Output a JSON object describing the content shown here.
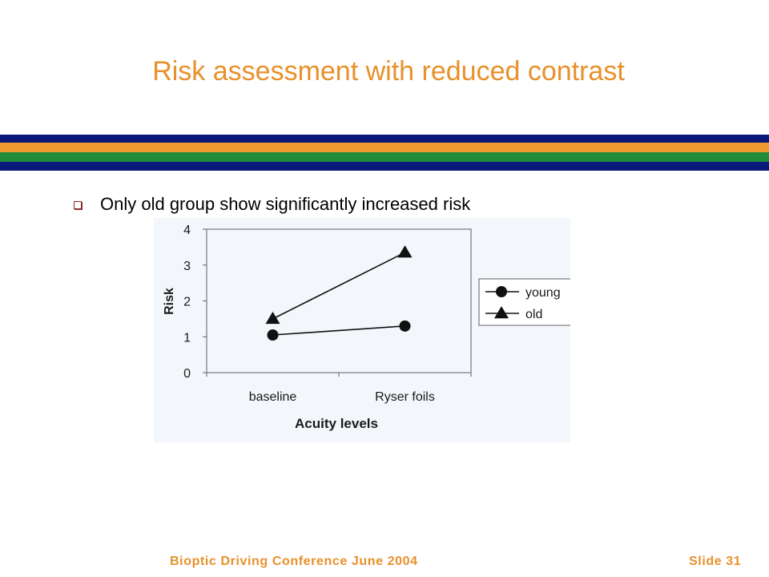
{
  "slide": {
    "title": "Risk assessment with reduced contrast",
    "bullet": "Only old group show significantly increased risk",
    "footer_left": "Bioptic Driving Conference June 2004",
    "footer_right": "Slide  31"
  },
  "colors": {
    "title": "#e8902a",
    "band_navy": "#0b1a7a",
    "band_orange": "#ef9a2e",
    "band_green": "#1f8a3a",
    "chart_background": "#f3f6fb"
  },
  "chart_data": {
    "type": "line",
    "categories": [
      "baseline",
      "Ryser foils"
    ],
    "series": [
      {
        "name": "young",
        "marker": "circle",
        "values": [
          1.05,
          1.3
        ]
      },
      {
        "name": "old",
        "marker": "triangle",
        "values": [
          1.5,
          3.35
        ]
      }
    ],
    "xlabel": "Acuity levels",
    "ylabel": "Risk",
    "ylim": [
      0,
      4
    ],
    "yticks": [
      "0",
      "1",
      "2",
      "3",
      "4"
    ],
    "legend_position": "right",
    "grid": false
  }
}
